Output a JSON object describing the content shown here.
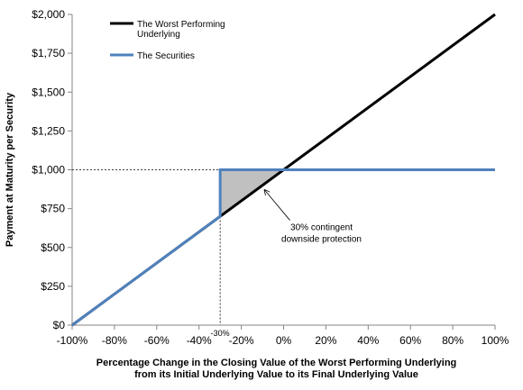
{
  "chart_data": {
    "type": "line",
    "xlabel_lines": [
      "Percentage Change in the Closing Value of the Worst Performing Underlying",
      "from its Initial Underlying Value to its Final Underlying Value"
    ],
    "ylabel": "Payment at Maturity per Security",
    "xlim": [
      -100,
      100
    ],
    "ylim": [
      0,
      2000
    ],
    "x_ticks": [
      -100,
      -80,
      -60,
      -40,
      -20,
      0,
      20,
      40,
      60,
      80,
      100
    ],
    "x_tick_labels": [
      "-100%",
      "-80%",
      "-60%",
      "-40%",
      "-20%",
      "0%",
      "20%",
      "40%",
      "60%",
      "80%",
      "100%"
    ],
    "y_ticks": [
      0,
      250,
      500,
      750,
      1000,
      1250,
      1500,
      1750,
      2000
    ],
    "y_tick_labels": [
      "$0",
      "$250",
      "$500",
      "$750",
      "$1,000",
      "$1,250",
      "$1,500",
      "$1,750",
      "$2,000"
    ],
    "series": [
      {
        "name_lines": [
          "The Worst Performing",
          "Underlying"
        ],
        "color": "#000000",
        "points": [
          [
            -100,
            0
          ],
          [
            100,
            2000
          ]
        ]
      },
      {
        "name_lines": [
          "The Securities"
        ],
        "color": "#4f81bd",
        "points": [
          [
            -100,
            0
          ],
          [
            -30,
            700
          ],
          [
            -30,
            1000
          ],
          [
            100,
            1000
          ]
        ]
      }
    ],
    "shaded_region": {
      "polygon": [
        [
          -30,
          700
        ],
        [
          -30,
          1000
        ],
        [
          0,
          1000
        ]
      ],
      "color": "#c0c0c0"
    },
    "reference_lines": {
      "horizontal_y": 1000,
      "vertical_x": -30,
      "vertical_label": "-30%"
    },
    "annotation": {
      "lines": [
        "30% contingent",
        "downside protection"
      ],
      "text_at": [
        3,
        635
      ],
      "arrow_from": [
        3,
        675
      ],
      "arrow_to": [
        -9,
        870
      ]
    }
  }
}
